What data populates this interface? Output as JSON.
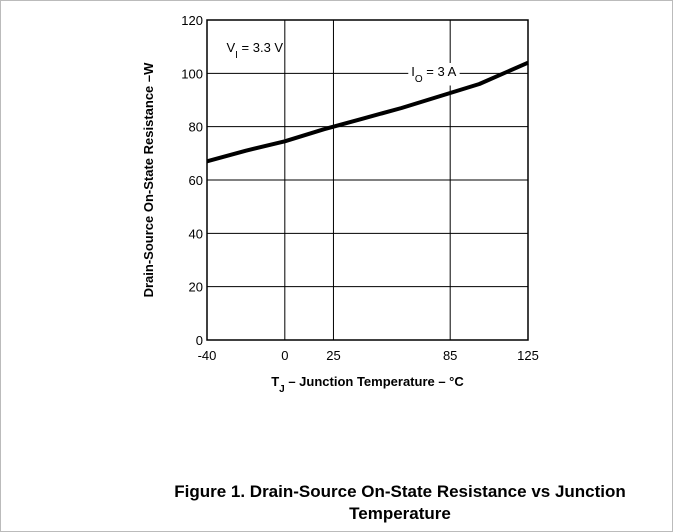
{
  "chart_data": {
    "type": "line",
    "caption": [
      "Figure 1. Drain-Source On-State Resistance vs Junction",
      "Temperature"
    ],
    "ylabel": "Drain-Source On-State Resistance –W",
    "xlabel": {
      "main": "T",
      "sub": "J",
      "rest": " – Junction Temperature – °C"
    },
    "annotations": [
      {
        "main": "V",
        "sub": "I",
        "rest": " = 3.3 V",
        "x": -30,
        "y": 108
      },
      {
        "main": "I",
        "sub": "O",
        "rest": " = 3 A",
        "x": 65,
        "y": 99
      }
    ],
    "x": [
      -40,
      -20,
      0,
      20,
      40,
      60,
      80,
      100,
      125
    ],
    "series": [
      {
        "color": "#000000",
        "values": [
          67,
          71,
          74.5,
          79,
          83,
          87,
          91.5,
          96,
          104
        ]
      }
    ],
    "xlim": [
      -40,
      125
    ],
    "xticks": [
      -40,
      0,
      25,
      85,
      125
    ],
    "ylim": [
      0,
      120
    ],
    "yticks": [
      0,
      20,
      40,
      60,
      80,
      100,
      120
    ],
    "grid": true
  }
}
